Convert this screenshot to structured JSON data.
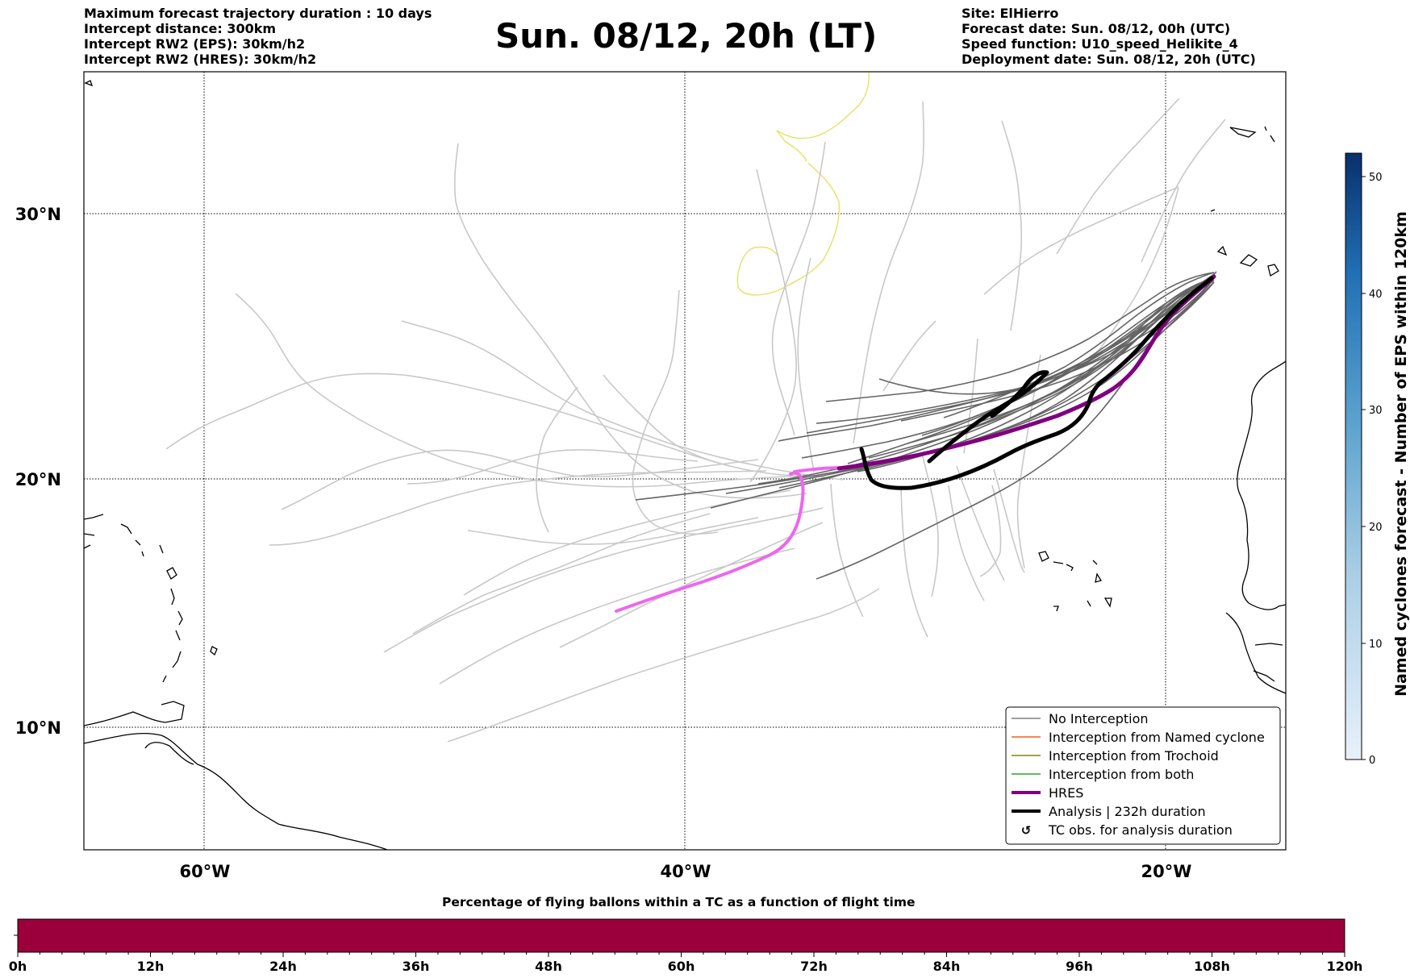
{
  "header_left": [
    "Maximum forecast trajectory duration : 10 days",
    "Intercept distance: 300km",
    "Intercept RW2 (EPS):  30km/h2",
    "Intercept RW2 (HRES): 30km/h2"
  ],
  "title": "Sun. 08/12, 20h (LT)",
  "header_right": [
    "Site: ElHierro",
    "Forecast date: Sun. 08/12, 00h (UTC)",
    "Speed function: U10_speed_Helikite_4",
    "Deployment date: Sun. 08/12, 20h (UTC)"
  ],
  "map": {
    "lat_labels": [
      "30°N",
      "20°N",
      "10°N"
    ],
    "lon_labels": [
      "60°W",
      "40°W",
      "20°W"
    ],
    "extent": {
      "lon_min": -65,
      "lon_max": -15,
      "lat_min": 5.2,
      "lat_max": 34.5
    }
  },
  "legend": {
    "items": [
      {
        "label": "No Interception",
        "color": "#808080",
        "style": "thin"
      },
      {
        "label": "Interception from Named cyclone",
        "color": "#ff5a1e",
        "style": "thin"
      },
      {
        "label": "Interception from Trochoid",
        "color": "#8b8000",
        "style": "thin"
      },
      {
        "label": "Interception from both",
        "color": "#2ca02c",
        "style": "thin"
      },
      {
        "label": "HRES",
        "color": "#800080",
        "style": "thick"
      },
      {
        "label": "Analysis | 232h duration",
        "color": "#000000",
        "style": "thick"
      },
      {
        "label": "TC obs. for analysis duration",
        "color": "#000000",
        "style": "symbol",
        "symbol": "↺"
      }
    ]
  },
  "colorbar": {
    "title": "Named cyclones forecast - Number of EPS within 120km",
    "ticks": [
      "0",
      "10",
      "20",
      "30",
      "40",
      "50"
    ],
    "range": [
      0,
      52
    ],
    "color_low": "#e8f1fa",
    "color_high": "#08306b"
  },
  "timebar": {
    "title": "Percentage of flying ballons within a TC as a function of flight time",
    "ticks": [
      "0h",
      "12h",
      "24h",
      "36h",
      "48h",
      "60h",
      "72h",
      "84h",
      "96h",
      "108h",
      "120h"
    ],
    "fill_color": "#9b003c",
    "fill_fraction": 1.0
  },
  "colors": {
    "ensemble_light": "#c8c8c8",
    "ensemble_dark": "#646464",
    "hres": "#800080",
    "hres_recent": "#ee66ee",
    "analysis": "#000000",
    "cyclone": "#e8e060"
  }
}
